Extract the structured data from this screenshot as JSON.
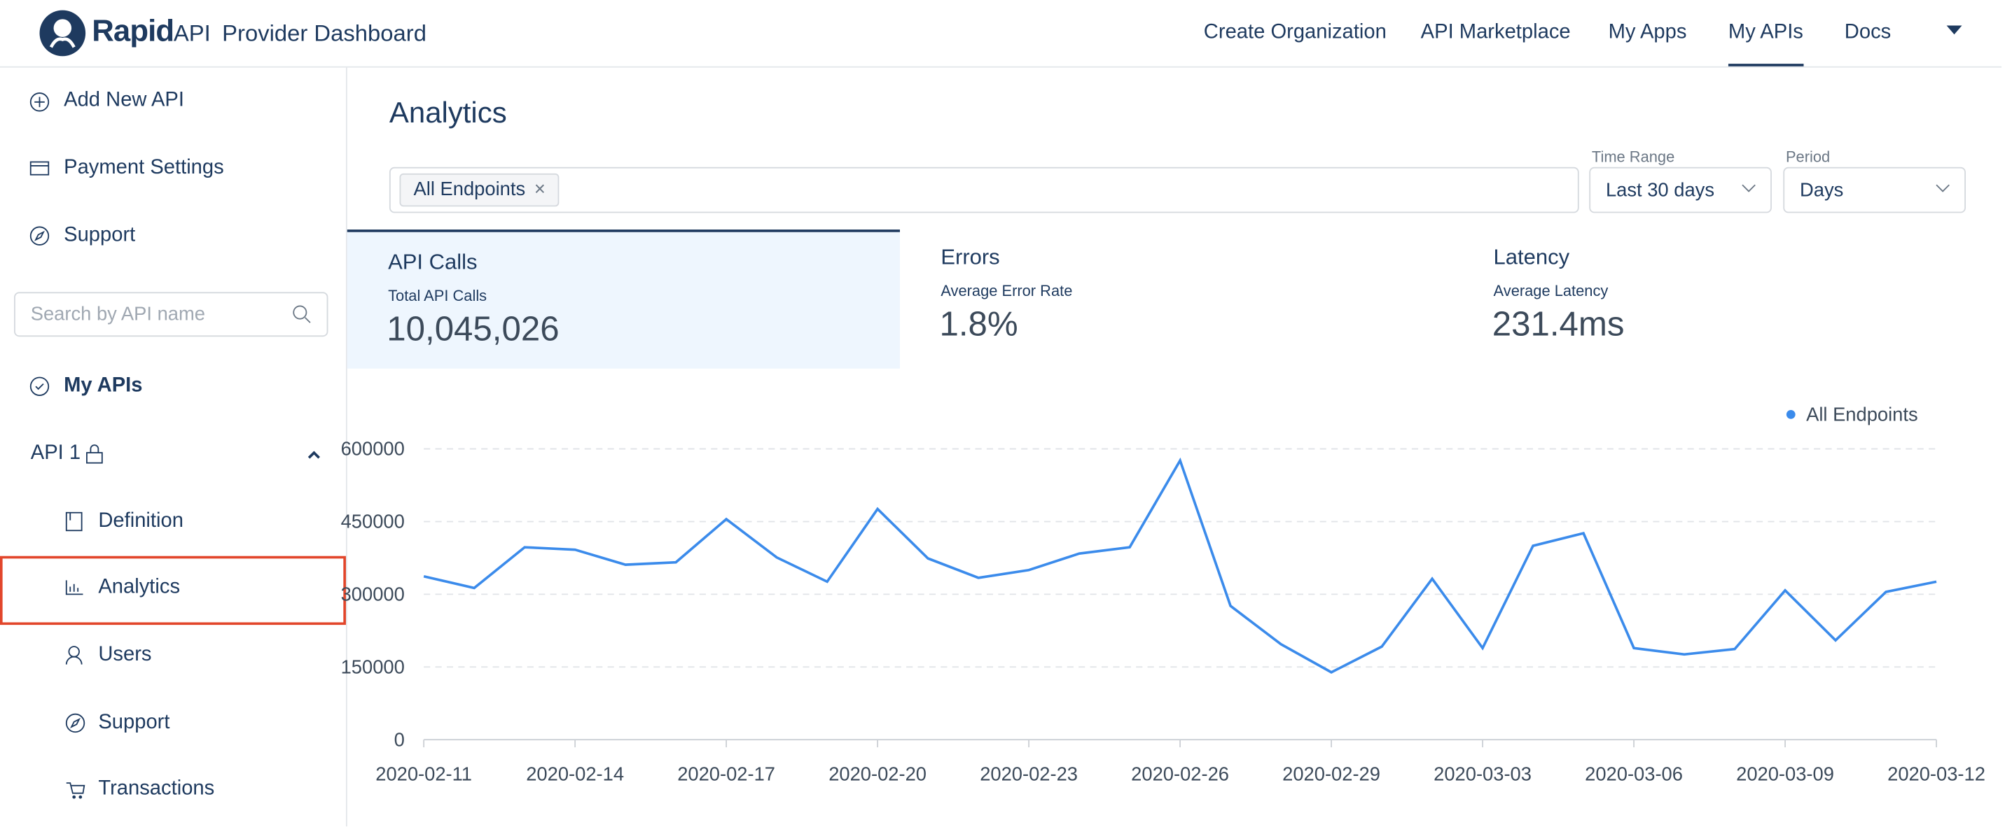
{
  "header": {
    "logo_text": "Rapid",
    "logo_suffix": "API",
    "product": "Provider Dashboard",
    "nav": [
      "Create Organization",
      "API Marketplace",
      "My Apps",
      "My APIs",
      "Docs"
    ]
  },
  "sidebar": {
    "top_links": [
      "Add New API",
      "Payment Settings",
      "Support"
    ],
    "search_placeholder": "Search by API name",
    "my_apis": "My APIs",
    "api_name": "API 1",
    "api_links": [
      "Definition",
      "Analytics",
      "Users",
      "Support",
      "Transactions"
    ]
  },
  "analytics": {
    "title": "Analytics",
    "filter_chip": "All Endpoints",
    "time_range_label": "Time Range",
    "time_range": "Last 30 days",
    "period_label": "Period",
    "period": "Days",
    "metrics": [
      {
        "title": "API Calls",
        "subtitle": "Total API Calls",
        "value": "10,045,026"
      },
      {
        "title": "Errors",
        "subtitle": "Average Error Rate",
        "value": "1.8%"
      },
      {
        "title": "Latency",
        "subtitle": "Average Latency",
        "value": "231.4ms"
      }
    ]
  },
  "chart_data": {
    "type": "line",
    "x": [
      "2020-02-11",
      "2020-02-12",
      "2020-02-13",
      "2020-02-14",
      "2020-02-15",
      "2020-02-16",
      "2020-02-17",
      "2020-02-18",
      "2020-02-19",
      "2020-02-20",
      "2020-02-21",
      "2020-02-22",
      "2020-02-23",
      "2020-02-24",
      "2020-02-25",
      "2020-02-26",
      "2020-02-27",
      "2020-02-28",
      "2020-02-29",
      "2020-03-01",
      "2020-03-02",
      "2020-03-03",
      "2020-03-04",
      "2020-03-05",
      "2020-03-06",
      "2020-03-07",
      "2020-03-08",
      "2020-03-09",
      "2020-03-10",
      "2020-03-11",
      "2020-03-12"
    ],
    "xticks": [
      "2020-02-11",
      "2020-02-14",
      "2020-02-17",
      "2020-02-20",
      "2020-02-23",
      "2020-02-26",
      "2020-02-29",
      "2020-03-03",
      "2020-03-06",
      "2020-03-09",
      "2020-03-12"
    ],
    "ylim": [
      0,
      600000
    ],
    "yticks": [
      0,
      150000,
      300000,
      450000,
      600000
    ],
    "grid": true,
    "legend": "top-right",
    "series": [
      {
        "name": "All Endpoints",
        "color": "#3b8beb",
        "values": [
          337000,
          313000,
          397000,
          392000,
          361000,
          366000,
          455000,
          376000,
          326000,
          476000,
          374000,
          334000,
          350000,
          384000,
          397000,
          576000,
          276000,
          197000,
          139000,
          192000,
          332000,
          189000,
          400000,
          426000,
          189000,
          176000,
          187000,
          308000,
          205000,
          305000,
          326000
        ]
      }
    ]
  }
}
